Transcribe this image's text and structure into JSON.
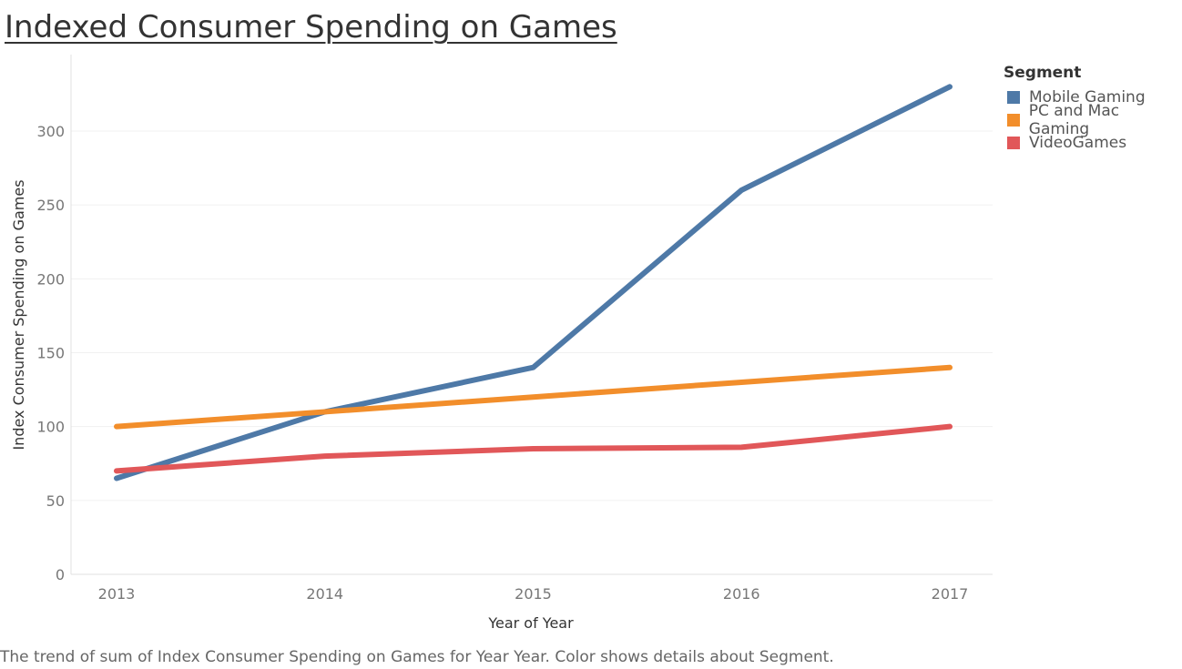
{
  "chart_data": {
    "type": "line",
    "title": "Indexed Consumer Spending on Games",
    "xlabel": "Year of Year",
    "ylabel": "Index Consumer Spending on Games",
    "categories": [
      "2013",
      "2014",
      "2015",
      "2016",
      "2017"
    ],
    "yticks": [
      0,
      50,
      100,
      150,
      200,
      250,
      300
    ],
    "ylim": [
      0,
      340
    ],
    "grid": true,
    "legend_placement": "right",
    "legend_title": "Segment",
    "series": [
      {
        "name": "Mobile Gaming",
        "color": "#4e79a7",
        "values": [
          65,
          110,
          140,
          260,
          330
        ]
      },
      {
        "name": "PC and Mac Gaming",
        "color": "#f28e2b",
        "values": [
          100,
          110,
          120,
          130,
          140
        ]
      },
      {
        "name": "VideoGames",
        "color": "#e15759",
        "values": [
          70,
          80,
          85,
          86,
          100
        ]
      }
    ]
  },
  "caption": "The trend of sum of Index Consumer Spending on Games for Year Year.  Color shows details about Segment."
}
